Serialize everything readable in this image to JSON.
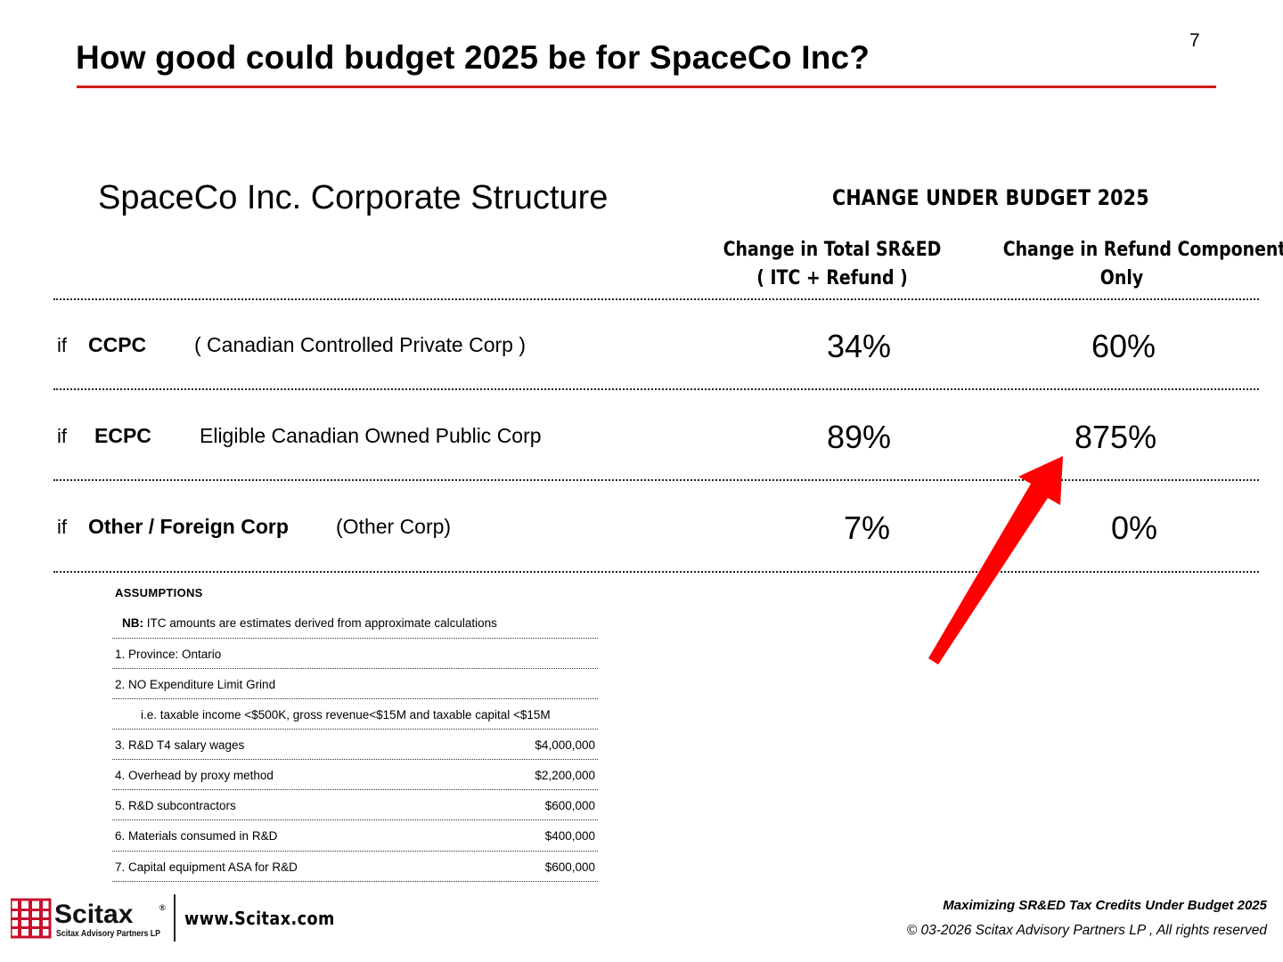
{
  "header": {
    "title": "How good could budget 2025 be for SpaceCo Inc?",
    "page_number": "7",
    "rule_color": "#d11a1a"
  },
  "structure_heading": "SpaceCo Inc. Corporate Structure",
  "change_heading": "CHANGE UNDER BUDGET 2025",
  "columns": {
    "total": {
      "line1": "Change in Total SR&ED",
      "line2": "( ITC + Refund )"
    },
    "refund": {
      "line1": "Change in Refund Component",
      "line2": "Only"
    }
  },
  "rows": [
    {
      "prefix": "if",
      "code": "CCPC",
      "description": "( Canadian Controlled Private Corp )",
      "total_change": "34%",
      "refund_change": "60%"
    },
    {
      "prefix": "if",
      "code": "ECPC",
      "description": "Eligible Canadian Owned Public Corp",
      "total_change": "89%",
      "refund_change": "875%"
    },
    {
      "prefix": "if",
      "code": "Other / Foreign Corp",
      "description": "(Other Corp)",
      "total_change": "7%",
      "refund_change": "0%"
    }
  ],
  "assumptions": {
    "title": "ASSUMPTIONS",
    "nb_label": "NB:",
    "nb_text": "ITC amounts are estimates derived from approximate calculations",
    "items": [
      {
        "label": "1. Province:  Ontario",
        "value": ""
      },
      {
        "label": "2. NO Expenditure Limit Grind",
        "value": ""
      },
      {
        "label": "i.e. taxable income <$500K, gross revenue<$15M and taxable capital <$15M",
        "value": ""
      },
      {
        "label": "3. R&D T4 salary wages",
        "value": "$4,000,000"
      },
      {
        "label": "4. Overhead by proxy method",
        "value": "$2,200,000"
      },
      {
        "label": "5. R&D subcontractors",
        "value": "$600,000"
      },
      {
        "label": "6. Materials consumed in R&D",
        "value": "$400,000"
      },
      {
        "label": "7. Capital equipment ASA for R&D",
        "value": "$600,000"
      }
    ]
  },
  "arrow_color": "#ff0000",
  "footer": {
    "logo_name": "Scitax",
    "logo_registered": "®",
    "logo_subtitle": "Scitax Advisory Partners LP",
    "logo_color": "#c8102e",
    "website": "www.Scitax.com",
    "title": "Maximizing SR&ED Tax Credits Under Budget 2025",
    "copyright_symbol": "©",
    "copyright": "03-2026 Scitax Advisory Partners LP ,  All rights reserved"
  }
}
